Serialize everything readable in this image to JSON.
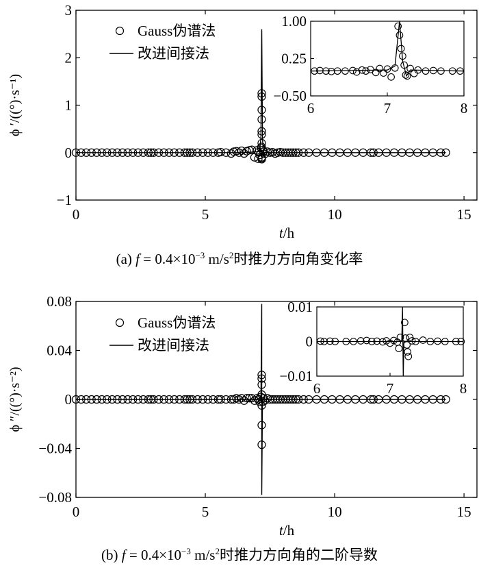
{
  "chart_data": [
    {
      "type": "scatter",
      "panel": "(a)",
      "caption": {
        "prefix": "(a) ",
        "var": "f",
        "eq": " = 0.4×10",
        "exp1": "−3",
        "unit": " m/s",
        "exp2": "2",
        "text": "时推力方向角变化率"
      },
      "xlabel": {
        "var": "t",
        "unit": "/h"
      },
      "ylabel": "ϕ ′/((°)·s⁻¹)",
      "xlim": [
        0,
        15.5
      ],
      "ylim": [
        -1,
        3
      ],
      "xticks": [
        0,
        5,
        10,
        15
      ],
      "yticks": [
        -1,
        0,
        1,
        2,
        3
      ],
      "ytick_labels": [
        "−1",
        "0",
        "1",
        "2",
        "3"
      ],
      "legend": {
        "placement": "top-left",
        "entries": [
          "Gauss伪谱法",
          "改进间接法"
        ]
      },
      "series": [
        {
          "name": "Gauss伪谱法",
          "style": "markers",
          "x": [
            0,
            0.2,
            0.4,
            0.6,
            0.8,
            1.0,
            1.2,
            1.4,
            1.6,
            1.8,
            2.0,
            2.2,
            2.4,
            2.6,
            2.8,
            2.9,
            3.0,
            3.2,
            3.4,
            3.6,
            3.8,
            4.0,
            4.2,
            4.3,
            4.4,
            4.5,
            4.7,
            4.9,
            5.1,
            5.3,
            5.5,
            5.6,
            5.8,
            6.0,
            6.1,
            6.2,
            6.3,
            6.4,
            6.5,
            6.6,
            6.7,
            6.8,
            6.9,
            7.0,
            7.05,
            7.1,
            7.15,
            7.18,
            7.22,
            7.25,
            7.3,
            7.4,
            7.5,
            7.6,
            7.7,
            7.8,
            7.9,
            8.0,
            8.1,
            8.2,
            8.3,
            8.4,
            8.5,
            8.6,
            8.8,
            9.0,
            9.3,
            9.6,
            9.9,
            10.2,
            10.5,
            10.8,
            11.1,
            11.4,
            11.5,
            11.7,
            12.0,
            12.3,
            12.6,
            12.9,
            13.2,
            13.5,
            13.8,
            14.1,
            14.3
          ],
          "y": [
            0,
            0,
            0,
            0,
            0,
            0,
            0,
            0,
            0,
            0,
            0,
            0,
            0,
            0,
            0,
            0,
            0,
            0,
            0,
            0,
            0,
            0,
            0,
            0,
            0,
            0,
            0,
            0,
            0,
            0,
            0,
            0.01,
            0,
            -0.02,
            0.02,
            0.03,
            0,
            0.04,
            -0.02,
            0.03,
            0.05,
            0.06,
            -0.1,
            0.05,
            0.01,
            -0.05,
            0.1,
            -0.1,
            0.05,
            0.02,
            -0.03,
            0.02,
            0,
            0.01,
            -0.02,
            0,
            0.01,
            0,
            0,
            0,
            0,
            0,
            0,
            0,
            0,
            0,
            0,
            0,
            0,
            0,
            0,
            0,
            0,
            0,
            0,
            0,
            0,
            0,
            0,
            0,
            0,
            0,
            0,
            0,
            0
          ],
          "spike_points": [
            {
              "x": 7.18,
              "y": 1.25
            },
            {
              "x": 7.18,
              "y": 1.18
            },
            {
              "x": 7.18,
              "y": 0.9
            },
            {
              "x": 7.18,
              "y": 0.7
            },
            {
              "x": 7.18,
              "y": 0.45
            },
            {
              "x": 7.18,
              "y": 0.38
            },
            {
              "x": 7.18,
              "y": 0.2
            },
            {
              "x": 7.18,
              "y": 0.12
            },
            {
              "x": 7.18,
              "y": -0.12
            },
            {
              "x": 7.18,
              "y": -0.14
            },
            {
              "x": 7.05,
              "y": -0.13
            }
          ]
        },
        {
          "name": "改进间接法",
          "style": "line",
          "x": [
            0,
            6.5,
            7.0,
            7.1,
            7.15,
            7.18,
            7.21,
            7.25,
            7.3,
            7.5,
            14.3
          ],
          "y": [
            0,
            0,
            0.02,
            0.05,
            0.3,
            2.6,
            0.3,
            -0.05,
            0.01,
            0,
            0
          ]
        }
      ],
      "inset": {
        "xlim": [
          6,
          8
        ],
        "ylim": [
          -0.5,
          1.0
        ],
        "xticks": [
          6,
          7,
          8
        ],
        "yticks": [
          -0.5,
          0.25,
          1.0
        ],
        "ytick_labels": [
          "−0.50",
          "0.25",
          "1.00"
        ],
        "line_y": 0,
        "line_x": [
          6,
          8
        ],
        "points": [
          {
            "x": 6.05,
            "y": 0
          },
          {
            "x": 6.12,
            "y": 0.01
          },
          {
            "x": 6.2,
            "y": 0
          },
          {
            "x": 6.27,
            "y": -0.01
          },
          {
            "x": 6.35,
            "y": 0
          },
          {
            "x": 6.45,
            "y": 0
          },
          {
            "x": 6.55,
            "y": 0.01
          },
          {
            "x": 6.6,
            "y": -0.02
          },
          {
            "x": 6.67,
            "y": 0.02
          },
          {
            "x": 6.72,
            "y": 0
          },
          {
            "x": 6.78,
            "y": 0.03
          },
          {
            "x": 6.85,
            "y": -0.03
          },
          {
            "x": 6.9,
            "y": 0.05
          },
          {
            "x": 6.95,
            "y": -0.04
          },
          {
            "x": 7.0,
            "y": 0.04
          },
          {
            "x": 7.05,
            "y": -0.12
          },
          {
            "x": 7.1,
            "y": 0.06
          },
          {
            "x": 7.14,
            "y": 0.9
          },
          {
            "x": 7.16,
            "y": 0.72
          },
          {
            "x": 7.18,
            "y": 0.45
          },
          {
            "x": 7.2,
            "y": 0.3
          },
          {
            "x": 7.22,
            "y": 0.12
          },
          {
            "x": 7.24,
            "y": -0.08
          },
          {
            "x": 7.26,
            "y": -0.1
          },
          {
            "x": 7.3,
            "y": 0.05
          },
          {
            "x": 7.35,
            "y": -0.05
          },
          {
            "x": 7.4,
            "y": 0.02
          },
          {
            "x": 7.5,
            "y": 0
          },
          {
            "x": 7.6,
            "y": 0.01
          },
          {
            "x": 7.7,
            "y": 0
          },
          {
            "x": 7.85,
            "y": 0
          },
          {
            "x": 7.95,
            "y": 0
          }
        ],
        "curve": [
          {
            "x": 6.0,
            "y": 0
          },
          {
            "x": 7.0,
            "y": 0.02
          },
          {
            "x": 7.1,
            "y": 0.1
          },
          {
            "x": 7.16,
            "y": 1.0
          },
          {
            "x": 7.2,
            "y": 0.2
          },
          {
            "x": 7.25,
            "y": -0.1
          },
          {
            "x": 7.3,
            "y": 0.02
          },
          {
            "x": 8.0,
            "y": 0
          }
        ]
      }
    },
    {
      "type": "scatter",
      "panel": "(b)",
      "caption": {
        "prefix": "(b) ",
        "var": "f",
        "eq": " = 0.4×10",
        "exp1": "−3",
        "unit": " m/s",
        "exp2": "2",
        "text": "时推力方向角的二阶导数"
      },
      "xlabel": {
        "var": "t",
        "unit": "/h"
      },
      "ylabel": "ϕ ″/((°)·s⁻²)",
      "xlim": [
        0,
        15.5
      ],
      "ylim": [
        -0.08,
        0.08
      ],
      "xticks": [
        0,
        5,
        10,
        15
      ],
      "yticks": [
        -0.08,
        -0.04,
        0,
        0.04,
        0.08
      ],
      "ytick_labels": [
        "−0.08",
        "−0.04",
        "0",
        "0.04",
        "0.08"
      ],
      "legend": {
        "placement": "top-left",
        "entries": [
          "Gauss伪谱法",
          "改进间接法"
        ]
      },
      "series": [
        {
          "name": "Gauss伪谱法",
          "style": "markers",
          "x": [
            0,
            0.2,
            0.4,
            0.6,
            0.8,
            1.0,
            1.2,
            1.4,
            1.6,
            1.8,
            2.0,
            2.2,
            2.4,
            2.6,
            2.8,
            2.9,
            3.0,
            3.2,
            3.4,
            3.6,
            3.8,
            4.0,
            4.2,
            4.3,
            4.4,
            4.5,
            4.7,
            4.9,
            5.1,
            5.3,
            5.5,
            5.6,
            5.8,
            6.0,
            6.1,
            6.2,
            6.3,
            6.4,
            6.5,
            6.6,
            6.7,
            6.8,
            6.9,
            7.0,
            7.05,
            7.1,
            7.15,
            7.22,
            7.25,
            7.3,
            7.4,
            7.5,
            7.6,
            7.7,
            7.8,
            7.9,
            8.0,
            8.1,
            8.2,
            8.3,
            8.4,
            8.5,
            8.6,
            8.8,
            9.0,
            9.3,
            9.6,
            9.9,
            10.2,
            10.5,
            10.8,
            11.1,
            11.4,
            11.5,
            11.7,
            12.0,
            12.3,
            12.6,
            12.9,
            13.2,
            13.5,
            13.8,
            14.1,
            14.3
          ],
          "y": [
            0,
            0,
            0,
            0,
            0,
            0,
            0,
            0,
            0,
            0,
            0,
            0,
            0,
            0,
            0,
            0,
            0,
            0,
            0,
            0,
            0,
            0,
            0,
            0,
            0,
            0,
            0,
            0,
            0,
            0,
            0,
            0,
            0,
            0,
            0,
            0.001,
            0,
            0.001,
            -0.001,
            0.001,
            0.001,
            0.001,
            -0.001,
            0.001,
            0,
            -0.002,
            0.002,
            -0.002,
            0.001,
            -0.001,
            0.001,
            0,
            0,
            0,
            0,
            0,
            0,
            0,
            0,
            0,
            0,
            0,
            0,
            0,
            0,
            0,
            0,
            0,
            0,
            0,
            0,
            0,
            0,
            0,
            0,
            0,
            0,
            0,
            0,
            0,
            0,
            0,
            0,
            0
          ],
          "spike_points": [
            {
              "x": 7.18,
              "y": 0.02
            },
            {
              "x": 7.18,
              "y": 0.017
            },
            {
              "x": 7.18,
              "y": 0.012
            },
            {
              "x": 7.18,
              "y": 0.004
            },
            {
              "x": 7.18,
              "y": -0.005
            },
            {
              "x": 7.18,
              "y": -0.021
            },
            {
              "x": 7.18,
              "y": -0.037
            }
          ]
        },
        {
          "name": "改进间接法",
          "style": "line",
          "x": [
            0,
            7.0,
            7.15,
            7.18,
            7.18,
            7.21,
            7.4,
            14.3
          ],
          "y": [
            0,
            0,
            0,
            0.078,
            -0.078,
            0,
            0,
            0
          ]
        }
      ],
      "inset": {
        "xlim": [
          6,
          8
        ],
        "ylim": [
          -0.01,
          0.01
        ],
        "xticks": [
          6,
          7,
          8
        ],
        "yticks": [
          -0.01,
          0,
          0.01
        ],
        "ytick_labels": [
          "−0.01",
          "0",
          "0.01"
        ],
        "line_y": 0,
        "line_x": [
          6,
          8
        ],
        "points": [
          {
            "x": 6.05,
            "y": 0.0001
          },
          {
            "x": 6.1,
            "y": 0
          },
          {
            "x": 6.18,
            "y": 0.0001
          },
          {
            "x": 6.25,
            "y": 0
          },
          {
            "x": 6.4,
            "y": 0
          },
          {
            "x": 6.5,
            "y": 0
          },
          {
            "x": 6.6,
            "y": 0.0002
          },
          {
            "x": 6.68,
            "y": 0.0003
          },
          {
            "x": 6.75,
            "y": 0
          },
          {
            "x": 6.82,
            "y": 0.0001
          },
          {
            "x": 6.9,
            "y": -0.0001
          },
          {
            "x": 6.95,
            "y": 0.0002
          },
          {
            "x": 7.0,
            "y": -0.0005
          },
          {
            "x": 7.05,
            "y": 0.0003
          },
          {
            "x": 7.1,
            "y": -0.0002
          },
          {
            "x": 7.12,
            "y": -0.002
          },
          {
            "x": 7.14,
            "y": 0.0012
          },
          {
            "x": 7.2,
            "y": 0.0055
          },
          {
            "x": 7.21,
            "y": 0.001
          },
          {
            "x": 7.23,
            "y": -0.001
          },
          {
            "x": 7.24,
            "y": -0.003
          },
          {
            "x": 7.25,
            "y": -0.0043
          },
          {
            "x": 7.27,
            "y": 0.0012
          },
          {
            "x": 7.3,
            "y": 0.0002
          },
          {
            "x": 7.35,
            "y": 0
          },
          {
            "x": 7.45,
            "y": 0.0004
          },
          {
            "x": 7.55,
            "y": 0
          },
          {
            "x": 7.65,
            "y": 0.0001
          },
          {
            "x": 7.75,
            "y": 0
          },
          {
            "x": 7.9,
            "y": 0
          },
          {
            "x": 7.97,
            "y": 0
          }
        ],
        "curve": [
          {
            "x": 6.0,
            "y": 0
          },
          {
            "x": 7.16,
            "y": 0
          },
          {
            "x": 7.17,
            "y": 0.01
          },
          {
            "x": 7.18,
            "y": -0.01
          },
          {
            "x": 7.19,
            "y": 0
          },
          {
            "x": 8.0,
            "y": 0
          }
        ]
      }
    }
  ]
}
